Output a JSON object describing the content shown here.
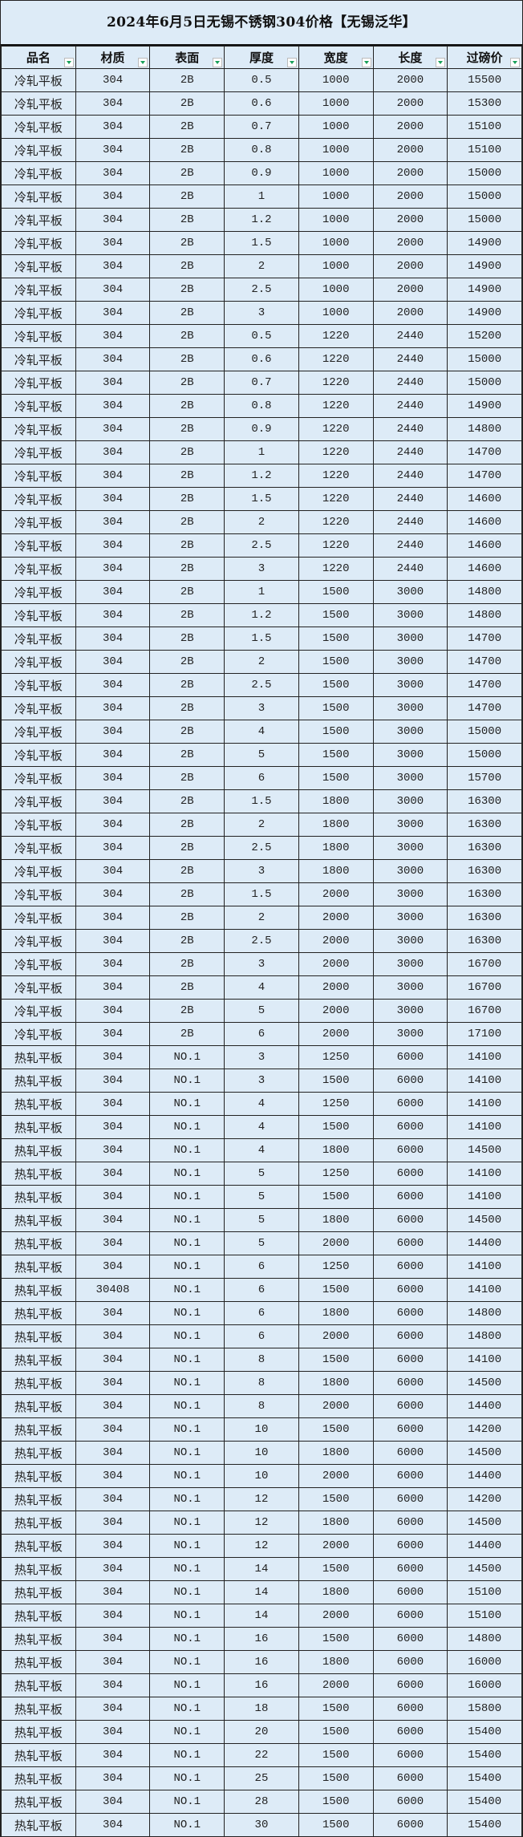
{
  "title": "2024年6月5日无锡不锈钢304价格【无锡泛华】",
  "columns": [
    "品名",
    "材质",
    "表面",
    "厚度",
    "宽度",
    "长度",
    "过磅价"
  ],
  "colors": {
    "background": "#ddebf7",
    "filter_arrow": "#18a058",
    "border": "#222222"
  },
  "rows": [
    [
      "冷轧平板",
      "304",
      "2B",
      "0.5",
      "1000",
      "2000",
      "15500"
    ],
    [
      "冷轧平板",
      "304",
      "2B",
      "0.6",
      "1000",
      "2000",
      "15300"
    ],
    [
      "冷轧平板",
      "304",
      "2B",
      "0.7",
      "1000",
      "2000",
      "15100"
    ],
    [
      "冷轧平板",
      "304",
      "2B",
      "0.8",
      "1000",
      "2000",
      "15100"
    ],
    [
      "冷轧平板",
      "304",
      "2B",
      "0.9",
      "1000",
      "2000",
      "15000"
    ],
    [
      "冷轧平板",
      "304",
      "2B",
      "1",
      "1000",
      "2000",
      "15000"
    ],
    [
      "冷轧平板",
      "304",
      "2B",
      "1.2",
      "1000",
      "2000",
      "15000"
    ],
    [
      "冷轧平板",
      "304",
      "2B",
      "1.5",
      "1000",
      "2000",
      "14900"
    ],
    [
      "冷轧平板",
      "304",
      "2B",
      "2",
      "1000",
      "2000",
      "14900"
    ],
    [
      "冷轧平板",
      "304",
      "2B",
      "2.5",
      "1000",
      "2000",
      "14900"
    ],
    [
      "冷轧平板",
      "304",
      "2B",
      "3",
      "1000",
      "2000",
      "14900"
    ],
    [
      "冷轧平板",
      "304",
      "2B",
      "0.5",
      "1220",
      "2440",
      "15200"
    ],
    [
      "冷轧平板",
      "304",
      "2B",
      "0.6",
      "1220",
      "2440",
      "15000"
    ],
    [
      "冷轧平板",
      "304",
      "2B",
      "0.7",
      "1220",
      "2440",
      "15000"
    ],
    [
      "冷轧平板",
      "304",
      "2B",
      "0.8",
      "1220",
      "2440",
      "14900"
    ],
    [
      "冷轧平板",
      "304",
      "2B",
      "0.9",
      "1220",
      "2440",
      "14800"
    ],
    [
      "冷轧平板",
      "304",
      "2B",
      "1",
      "1220",
      "2440",
      "14700"
    ],
    [
      "冷轧平板",
      "304",
      "2B",
      "1.2",
      "1220",
      "2440",
      "14700"
    ],
    [
      "冷轧平板",
      "304",
      "2B",
      "1.5",
      "1220",
      "2440",
      "14600"
    ],
    [
      "冷轧平板",
      "304",
      "2B",
      "2",
      "1220",
      "2440",
      "14600"
    ],
    [
      "冷轧平板",
      "304",
      "2B",
      "2.5",
      "1220",
      "2440",
      "14600"
    ],
    [
      "冷轧平板",
      "304",
      "2B",
      "3",
      "1220",
      "2440",
      "14600"
    ],
    [
      "冷轧平板",
      "304",
      "2B",
      "1",
      "1500",
      "3000",
      "14800"
    ],
    [
      "冷轧平板",
      "304",
      "2B",
      "1.2",
      "1500",
      "3000",
      "14800"
    ],
    [
      "冷轧平板",
      "304",
      "2B",
      "1.5",
      "1500",
      "3000",
      "14700"
    ],
    [
      "冷轧平板",
      "304",
      "2B",
      "2",
      "1500",
      "3000",
      "14700"
    ],
    [
      "冷轧平板",
      "304",
      "2B",
      "2.5",
      "1500",
      "3000",
      "14700"
    ],
    [
      "冷轧平板",
      "304",
      "2B",
      "3",
      "1500",
      "3000",
      "14700"
    ],
    [
      "冷轧平板",
      "304",
      "2B",
      "4",
      "1500",
      "3000",
      "15000"
    ],
    [
      "冷轧平板",
      "304",
      "2B",
      "5",
      "1500",
      "3000",
      "15000"
    ],
    [
      "冷轧平板",
      "304",
      "2B",
      "6",
      "1500",
      "3000",
      "15700"
    ],
    [
      "冷轧平板",
      "304",
      "2B",
      "1.5",
      "1800",
      "3000",
      "16300"
    ],
    [
      "冷轧平板",
      "304",
      "2B",
      "2",
      "1800",
      "3000",
      "16300"
    ],
    [
      "冷轧平板",
      "304",
      "2B",
      "2.5",
      "1800",
      "3000",
      "16300"
    ],
    [
      "冷轧平板",
      "304",
      "2B",
      "3",
      "1800",
      "3000",
      "16300"
    ],
    [
      "冷轧平板",
      "304",
      "2B",
      "1.5",
      "2000",
      "3000",
      "16300"
    ],
    [
      "冷轧平板",
      "304",
      "2B",
      "2",
      "2000",
      "3000",
      "16300"
    ],
    [
      "冷轧平板",
      "304",
      "2B",
      "2.5",
      "2000",
      "3000",
      "16300"
    ],
    [
      "冷轧平板",
      "304",
      "2B",
      "3",
      "2000",
      "3000",
      "16700"
    ],
    [
      "冷轧平板",
      "304",
      "2B",
      "4",
      "2000",
      "3000",
      "16700"
    ],
    [
      "冷轧平板",
      "304",
      "2B",
      "5",
      "2000",
      "3000",
      "16700"
    ],
    [
      "冷轧平板",
      "304",
      "2B",
      "6",
      "2000",
      "3000",
      "17100"
    ],
    [
      "热轧平板",
      "304",
      "NO.1",
      "3",
      "1250",
      "6000",
      "14100"
    ],
    [
      "热轧平板",
      "304",
      "NO.1",
      "3",
      "1500",
      "6000",
      "14100"
    ],
    [
      "热轧平板",
      "304",
      "NO.1",
      "4",
      "1250",
      "6000",
      "14100"
    ],
    [
      "热轧平板",
      "304",
      "NO.1",
      "4",
      "1500",
      "6000",
      "14100"
    ],
    [
      "热轧平板",
      "304",
      "NO.1",
      "4",
      "1800",
      "6000",
      "14500"
    ],
    [
      "热轧平板",
      "304",
      "NO.1",
      "5",
      "1250",
      "6000",
      "14100"
    ],
    [
      "热轧平板",
      "304",
      "NO.1",
      "5",
      "1500",
      "6000",
      "14100"
    ],
    [
      "热轧平板",
      "304",
      "NO.1",
      "5",
      "1800",
      "6000",
      "14500"
    ],
    [
      "热轧平板",
      "304",
      "NO.1",
      "5",
      "2000",
      "6000",
      "14400"
    ],
    [
      "热轧平板",
      "304",
      "NO.1",
      "6",
      "1250",
      "6000",
      "14100"
    ],
    [
      "热轧平板",
      "30408",
      "NO.1",
      "6",
      "1500",
      "6000",
      "14100"
    ],
    [
      "热轧平板",
      "304",
      "NO.1",
      "6",
      "1800",
      "6000",
      "14800"
    ],
    [
      "热轧平板",
      "304",
      "NO.1",
      "6",
      "2000",
      "6000",
      "14800"
    ],
    [
      "热轧平板",
      "304",
      "NO.1",
      "8",
      "1500",
      "6000",
      "14100"
    ],
    [
      "热轧平板",
      "304",
      "NO.1",
      "8",
      "1800",
      "6000",
      "14500"
    ],
    [
      "热轧平板",
      "304",
      "NO.1",
      "8",
      "2000",
      "6000",
      "14400"
    ],
    [
      "热轧平板",
      "304",
      "NO.1",
      "10",
      "1500",
      "6000",
      "14200"
    ],
    [
      "热轧平板",
      "304",
      "NO.1",
      "10",
      "1800",
      "6000",
      "14500"
    ],
    [
      "热轧平板",
      "304",
      "NO.1",
      "10",
      "2000",
      "6000",
      "14400"
    ],
    [
      "热轧平板",
      "304",
      "NO.1",
      "12",
      "1500",
      "6000",
      "14200"
    ],
    [
      "热轧平板",
      "304",
      "NO.1",
      "12",
      "1800",
      "6000",
      "14500"
    ],
    [
      "热轧平板",
      "304",
      "NO.1",
      "12",
      "2000",
      "6000",
      "14400"
    ],
    [
      "热轧平板",
      "304",
      "NO.1",
      "14",
      "1500",
      "6000",
      "14500"
    ],
    [
      "热轧平板",
      "304",
      "NO.1",
      "14",
      "1800",
      "6000",
      "15100"
    ],
    [
      "热轧平板",
      "304",
      "NO.1",
      "14",
      "2000",
      "6000",
      "15100"
    ],
    [
      "热轧平板",
      "304",
      "NO.1",
      "16",
      "1500",
      "6000",
      "14800"
    ],
    [
      "热轧平板",
      "304",
      "NO.1",
      "16",
      "1800",
      "6000",
      "16000"
    ],
    [
      "热轧平板",
      "304",
      "NO.1",
      "16",
      "2000",
      "6000",
      "16000"
    ],
    [
      "热轧平板",
      "304",
      "NO.1",
      "18",
      "1500",
      "6000",
      "15800"
    ],
    [
      "热轧平板",
      "304",
      "NO.1",
      "20",
      "1500",
      "6000",
      "15400"
    ],
    [
      "热轧平板",
      "304",
      "NO.1",
      "22",
      "1500",
      "6000",
      "15400"
    ],
    [
      "热轧平板",
      "304",
      "NO.1",
      "25",
      "1500",
      "6000",
      "15400"
    ],
    [
      "热轧平板",
      "304",
      "NO.1",
      "28",
      "1500",
      "6000",
      "15400"
    ],
    [
      "热轧平板",
      "304",
      "NO.1",
      "30",
      "1500",
      "6000",
      "15400"
    ]
  ]
}
